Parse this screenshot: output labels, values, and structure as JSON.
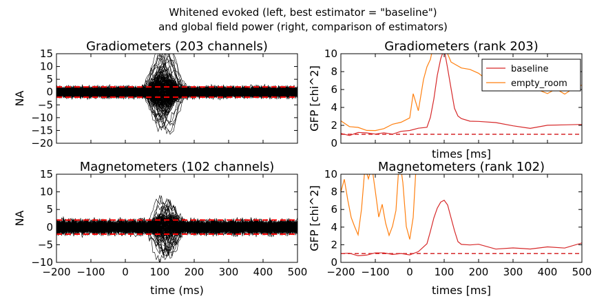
{
  "figure": {
    "title_line1": "Whitened evoked (left, best estimator = \"baseline\")",
    "title_line2": "and global field power (right, comparison of estimators)"
  },
  "chart_data": [
    {
      "type": "line",
      "title": "Gradiometers (203 channels)",
      "xlabel": "",
      "ylabel": "NA",
      "xlim": [
        -200,
        500
      ],
      "ylim": [
        -20,
        15
      ],
      "xticks": [],
      "yticks": [
        -20,
        -15,
        -10,
        -5,
        0,
        5,
        10,
        15
      ],
      "grid": false,
      "n_traces": 203,
      "noise_band": [
        -2.5,
        2.5
      ],
      "peak_window_ms": [
        50,
        170
      ],
      "peak_max_abs": 18,
      "reference_lines": [
        2,
        -2
      ],
      "reference_color": "#ff0000",
      "trace_color": "#000000"
    },
    {
      "type": "line",
      "title": "Gradiometers (rank 203)",
      "xlabel": "times [ms]",
      "ylabel": "GFP [chi^2]",
      "xlim": [
        -200,
        500
      ],
      "ylim": [
        0,
        10
      ],
      "xticks": [],
      "yticks": [
        0,
        2,
        4,
        6,
        8,
        10
      ],
      "grid": false,
      "legend_position": "top-right",
      "reference_line": 1,
      "series": [
        {
          "name": "baseline",
          "color": "#d62728",
          "x": [
            -200,
            -175,
            -150,
            -125,
            -100,
            -75,
            -50,
            -25,
            0,
            25,
            50,
            60,
            70,
            80,
            90,
            100,
            110,
            120,
            130,
            140,
            150,
            175,
            200,
            250,
            300,
            350,
            400,
            450,
            500
          ],
          "y": [
            1.1,
            1.0,
            1.05,
            1.1,
            1.0,
            1.15,
            1.1,
            1.2,
            1.3,
            1.5,
            1.8,
            3.0,
            5.0,
            7.5,
            9.6,
            10.5,
            8.5,
            6.0,
            4.0,
            3.2,
            2.6,
            2.4,
            2.3,
            2.2,
            2.0,
            1.8,
            1.9,
            2.0,
            2.1
          ]
        },
        {
          "name": "empty_room",
          "color": "#ff7f0e",
          "x": [
            -200,
            -175,
            -150,
            -125,
            -100,
            -75,
            -50,
            -25,
            0,
            10,
            25,
            40,
            50,
            60,
            70,
            80,
            100,
            120,
            150,
            175,
            200,
            225,
            250,
            275,
            300,
            325,
            350,
            375,
            400,
            425,
            450,
            475,
            500
          ],
          "y": [
            2.5,
            2.0,
            1.8,
            1.6,
            1.5,
            1.8,
            2.0,
            2.5,
            3.0,
            5.5,
            3.5,
            7.0,
            8.5,
            9.5,
            11,
            12,
            11,
            9.0,
            8.5,
            8.2,
            7.8,
            7.0,
            6.5,
            6.8,
            6.0,
            6.5,
            6.0,
            5.8,
            5.5,
            6.0,
            5.5,
            6.2,
            6.5
          ]
        }
      ]
    },
    {
      "type": "line",
      "title": "Magnetometers (102 channels)",
      "xlabel": "time (ms)",
      "ylabel": "NA",
      "xlim": [
        -200,
        500
      ],
      "ylim": [
        -10,
        15
      ],
      "xticks": [
        -200,
        -100,
        0,
        100,
        200,
        300,
        400,
        500
      ],
      "yticks": [
        -10,
        -5,
        0,
        5,
        10,
        15
      ],
      "grid": false,
      "n_traces": 102,
      "noise_band": [
        -2.5,
        2.5
      ],
      "peak_window_ms": [
        60,
        170
      ],
      "peak_max_abs": 9,
      "reference_lines": [
        2,
        -2
      ],
      "reference_color": "#ff0000",
      "trace_color": "#000000"
    },
    {
      "type": "line",
      "title": "Magnetometers (rank 102)",
      "xlabel": "times [ms]",
      "ylabel": "GFP [chi^2]",
      "xlim": [
        -200,
        500
      ],
      "ylim": [
        0,
        10
      ],
      "xticks": [
        -200,
        -100,
        0,
        100,
        200,
        300,
        400,
        500
      ],
      "yticks": [
        0,
        2,
        4,
        6,
        8,
        10
      ],
      "grid": false,
      "reference_line": 1,
      "series": [
        {
          "name": "baseline",
          "color": "#d62728",
          "x": [
            -200,
            -175,
            -150,
            -125,
            -100,
            -75,
            -50,
            -25,
            0,
            25,
            50,
            60,
            70,
            80,
            90,
            100,
            110,
            120,
            130,
            140,
            150,
            175,
            200,
            250,
            300,
            350,
            400,
            450,
            500
          ],
          "y": [
            1.0,
            1.1,
            0.9,
            1.0,
            1.1,
            1.0,
            1.0,
            0.9,
            1.0,
            1.3,
            2.0,
            3.5,
            5.0,
            6.0,
            6.8,
            7.0,
            6.5,
            5.0,
            3.5,
            2.5,
            2.2,
            2.0,
            1.9,
            1.6,
            1.8,
            1.5,
            1.7,
            1.8,
            2.2
          ]
        },
        {
          "name": "empty_room",
          "color": "#ff7f0e",
          "x": [
            -200,
            -190,
            -180,
            -170,
            -160,
            -150,
            -140,
            -130,
            -120,
            -110,
            -100,
            -90,
            -80,
            -70,
            -60,
            -50,
            -40,
            -30,
            -20,
            -10,
            0,
            10,
            20
          ],
          "y": [
            8.0,
            9.5,
            7.0,
            5.0,
            4.0,
            3.0,
            6.0,
            11,
            9.5,
            11,
            8.0,
            5.0,
            6.5,
            4.5,
            3.0,
            4.0,
            6.0,
            12,
            9.0,
            4.0,
            2.5,
            5.0,
            12
          ]
        }
      ]
    }
  ]
}
